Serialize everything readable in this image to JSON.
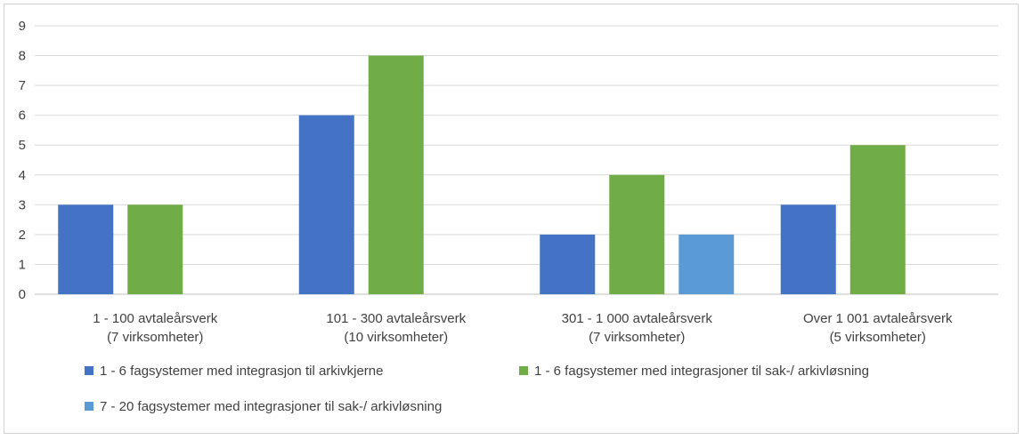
{
  "chart_data": {
    "type": "bar",
    "categories": [
      [
        "1 - 100 avtaleårsverk",
        "(7 virksomheter)"
      ],
      [
        "101 - 300 avtaleårsverk",
        "(10 virksomheter)"
      ],
      [
        "301 - 1 000 avtaleårsverk",
        "(7 virksomheter)"
      ],
      [
        "Over 1 001 avtaleårsverk",
        "(5 virksomheter)"
      ]
    ],
    "series": [
      {
        "name": "1 - 6 fagsystemer med integrasjon til arkivkjerne",
        "color": "#4472C4",
        "values": [
          3,
          6,
          2,
          3
        ]
      },
      {
        "name": "1 - 6 fagsystemer med integrasjoner til sak-/ arkivløsning",
        "color": "#70AD47",
        "values": [
          3,
          8,
          4,
          5
        ]
      },
      {
        "name": "7 - 20 fagsystemer med integrasjoner til sak-/ arkivløsning",
        "color": "#5B9BD5",
        "values": [
          0,
          0,
          2,
          0
        ]
      }
    ],
    "ylim": [
      0,
      9
    ],
    "yticks": [
      0,
      1,
      2,
      3,
      4,
      5,
      6,
      7,
      8,
      9
    ],
    "grid": true,
    "legend_position": "bottom",
    "gridline_color": "#d9d9d9"
  }
}
